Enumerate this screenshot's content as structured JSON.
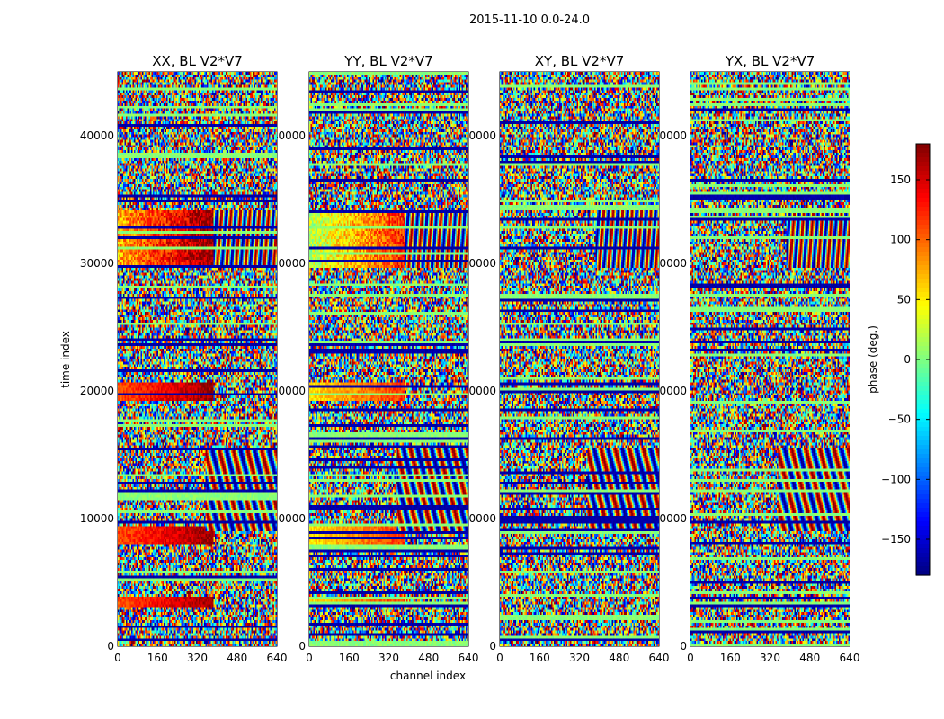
{
  "chart_data": {
    "type": "heatmap",
    "title": "2015-11-10 0.0-24.0",
    "xlabel": "channel index",
    "ylabel": "time index",
    "xlim": [
      0,
      640
    ],
    "ylim": [
      0,
      45000
    ],
    "x_ticks": [
      "0",
      "160",
      "320",
      "480",
      "640"
    ],
    "y_ticks": [
      "0",
      "10000",
      "20000",
      "30000",
      "40000"
    ],
    "x_tick_values": [
      0,
      160,
      320,
      480,
      640
    ],
    "y_tick_values": [
      0,
      10000,
      20000,
      30000,
      40000
    ],
    "panels": [
      {
        "title": "XX, BL V2*V7"
      },
      {
        "title": "YY, BL V2*V7"
      },
      {
        "title": "XY, BL V2*V7"
      },
      {
        "title": "YX, BL V2*V7"
      }
    ],
    "colorbar": {
      "label": "phase (deg.)",
      "range": [
        -180,
        180
      ],
      "ticks": [
        "−150",
        "−100",
        "−50",
        "0",
        "50",
        "100",
        "150"
      ],
      "tick_values": [
        -150,
        -100,
        -50,
        0,
        50,
        100,
        150
      ],
      "colormap": "jet"
    }
  }
}
